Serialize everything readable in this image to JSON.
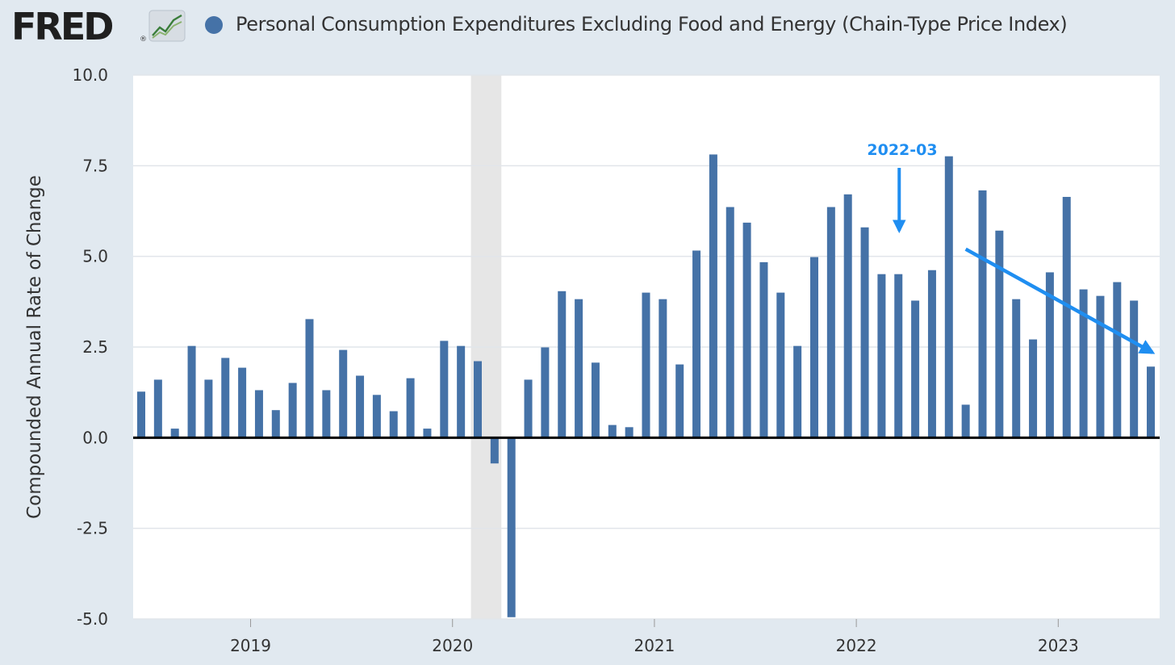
{
  "header": {
    "logo": "FRED",
    "logo_mark": "®",
    "logo_graph_icon": "line-chart-icon"
  },
  "colors": {
    "bar": "#4572a7",
    "background": "#e1e9f0",
    "plot_background": "#ffffff",
    "recession": "#e6e6e6",
    "annotation": "#1f8ef1",
    "zero_line": "#000000",
    "grid": "#e1e5ea"
  },
  "chart_data": {
    "type": "bar",
    "title": "Personal Consumption Expenditures Excluding Food and Energy (Chain-Type Price Index)",
    "ylabel": "Compounded Annual Rate of Change",
    "xlabel": "",
    "ylim": [
      -5.0,
      10.0
    ],
    "yticks": [
      "10.0",
      "7.5",
      "5.0",
      "2.5",
      "0.0",
      "-2.5",
      "-5.0"
    ],
    "xticks": [
      "2019",
      "2020",
      "2021",
      "2022",
      "2023"
    ],
    "grid": true,
    "legend": "top-left",
    "recession_band": {
      "start": "2020-02",
      "end": "2020-04"
    },
    "categories": [
      "2018-06",
      "2018-07",
      "2018-08",
      "2018-09",
      "2018-10",
      "2018-11",
      "2018-12",
      "2019-01",
      "2019-02",
      "2019-03",
      "2019-04",
      "2019-05",
      "2019-06",
      "2019-07",
      "2019-08",
      "2019-09",
      "2019-10",
      "2019-11",
      "2019-12",
      "2020-01",
      "2020-02",
      "2020-03",
      "2020-04",
      "2020-05",
      "2020-06",
      "2020-07",
      "2020-08",
      "2020-09",
      "2020-10",
      "2020-11",
      "2020-12",
      "2021-01",
      "2021-02",
      "2021-03",
      "2021-04",
      "2021-05",
      "2021-06",
      "2021-07",
      "2021-08",
      "2021-09",
      "2021-10",
      "2021-11",
      "2021-12",
      "2022-01",
      "2022-02",
      "2022-03",
      "2022-04",
      "2022-05",
      "2022-06",
      "2022-07",
      "2022-08",
      "2022-09",
      "2022-10",
      "2022-11",
      "2022-12",
      "2023-01",
      "2023-02",
      "2023-03",
      "2023-04",
      "2023-05",
      "2023-06"
    ],
    "series": [
      {
        "values": [
          1.27,
          1.6,
          0.25,
          2.53,
          1.6,
          2.2,
          1.93,
          1.31,
          0.76,
          1.51,
          3.27,
          1.31,
          2.42,
          1.71,
          1.18,
          0.73,
          1.64,
          0.25,
          2.67,
          2.53,
          2.11,
          -0.71,
          -4.95,
          1.6,
          2.49,
          4.04,
          3.82,
          2.07,
          0.35,
          0.29,
          4.0,
          3.82,
          2.02,
          5.16,
          7.81,
          6.36,
          5.93,
          4.84,
          4.0,
          2.53,
          4.98,
          6.36,
          6.71,
          5.8,
          4.51,
          4.51,
          3.78,
          4.62,
          7.76,
          0.91,
          6.82,
          5.71,
          3.82,
          2.71,
          4.56,
          6.64,
          4.09,
          3.91,
          4.29,
          3.78,
          1.96
        ]
      }
    ],
    "annotations": [
      {
        "text": "2022-03",
        "target": "2022-03",
        "value": 5.4
      },
      {
        "text": "",
        "type": "trend-arrow",
        "from": {
          "x": "2022-07",
          "y": 5.2
        },
        "to": {
          "x": "2023-06",
          "y": 2.35
        }
      }
    ]
  }
}
